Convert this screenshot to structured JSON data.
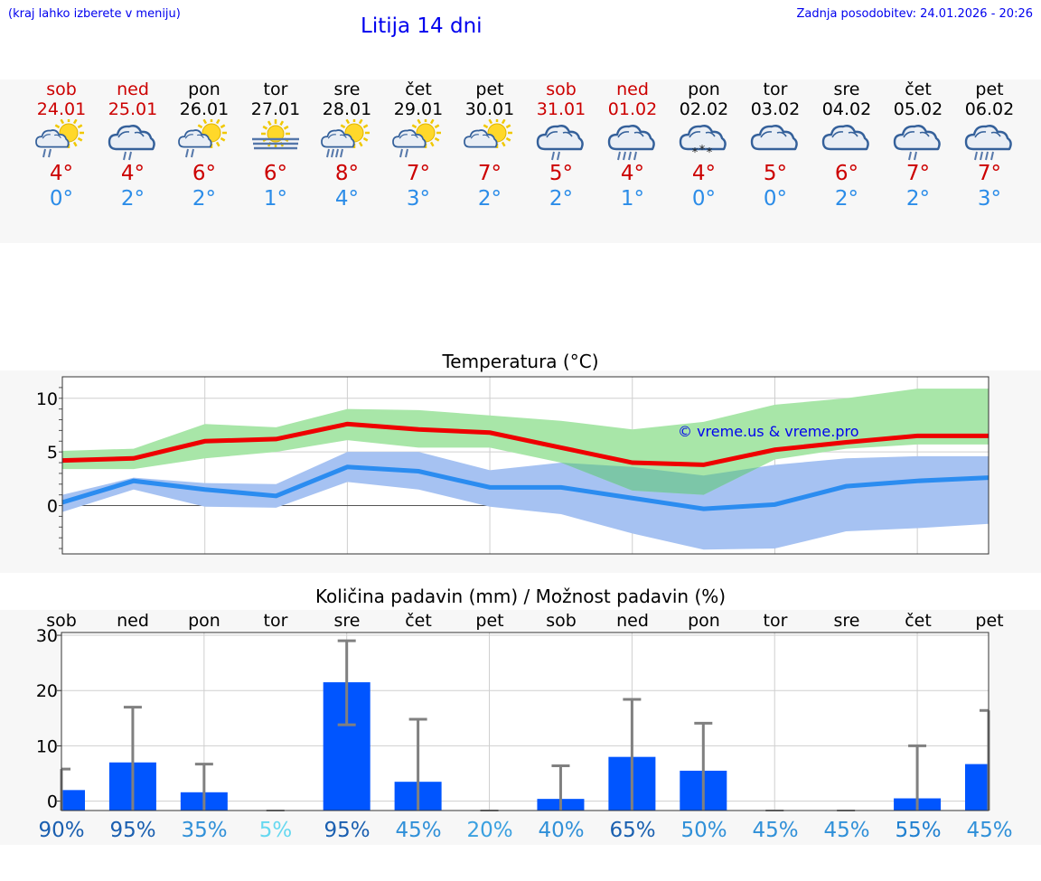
{
  "header": {
    "hint": "(kraj lahko izberete v meniju)",
    "title": "Litija 14 dni",
    "updated": "Zadnja posodobitev: 24.01.2026 - 20:26"
  },
  "days": [
    {
      "name": "sob",
      "date": "24.01",
      "weekend": true,
      "icon": "sun-cloud-rain-icon",
      "hi": "4°",
      "lo": "0°"
    },
    {
      "name": "ned",
      "date": "25.01",
      "weekend": true,
      "icon": "cloud-rain-icon",
      "hi": "4°",
      "lo": "2°"
    },
    {
      "name": "pon",
      "date": "26.01",
      "weekend": false,
      "icon": "sun-cloud-rain-icon",
      "hi": "6°",
      "lo": "2°"
    },
    {
      "name": "tor",
      "date": "27.01",
      "weekend": false,
      "icon": "sun-fog-icon",
      "hi": "6°",
      "lo": "1°"
    },
    {
      "name": "sre",
      "date": "28.01",
      "weekend": false,
      "icon": "sun-cloud-heavy-rain-icon",
      "hi": "8°",
      "lo": "4°"
    },
    {
      "name": "čet",
      "date": "29.01",
      "weekend": false,
      "icon": "sun-cloud-rain-icon",
      "hi": "7°",
      "lo": "3°"
    },
    {
      "name": "pet",
      "date": "30.01",
      "weekend": false,
      "icon": "sun-cloud-icon",
      "hi": "7°",
      "lo": "2°"
    },
    {
      "name": "sob",
      "date": "31.01",
      "weekend": true,
      "icon": "cloud-rain-icon",
      "hi": "5°",
      "lo": "2°"
    },
    {
      "name": "ned",
      "date": "01.02",
      "weekend": true,
      "icon": "cloud-heavy-rain-icon",
      "hi": "4°",
      "lo": "1°"
    },
    {
      "name": "pon",
      "date": "02.02",
      "weekend": false,
      "icon": "cloud-snow-icon",
      "hi": "4°",
      "lo": "0°"
    },
    {
      "name": "tor",
      "date": "03.02",
      "weekend": false,
      "icon": "cloud-icon",
      "hi": "5°",
      "lo": "0°"
    },
    {
      "name": "sre",
      "date": "04.02",
      "weekend": false,
      "icon": "cloud-icon",
      "hi": "6°",
      "lo": "2°"
    },
    {
      "name": "čet",
      "date": "05.02",
      "weekend": false,
      "icon": "cloud-rain-icon",
      "hi": "7°",
      "lo": "2°"
    },
    {
      "name": "pet",
      "date": "06.02",
      "weekend": false,
      "icon": "cloud-heavy-rain-icon",
      "hi": "7°",
      "lo": "3°"
    }
  ],
  "colors": {
    "max_line": "#ee0000",
    "max_band": "#a8e6a8",
    "min_line": "#2b8cf0",
    "min_band": "#a6c2f2",
    "overlap_band": "#7cc6a8",
    "bar": "#0055ff",
    "error": "#808080",
    "watermark": "#0000ee"
  },
  "chart_data": [
    {
      "type": "line",
      "title": "Temperatura (°C)",
      "watermark": "© vreme.us & vreme.pro",
      "x": [
        0,
        1,
        2,
        3,
        4,
        5,
        6,
        7,
        8,
        9,
        10,
        11,
        12,
        13
      ],
      "ylim": [
        -4.5,
        12
      ],
      "yticks": [
        0,
        5,
        10
      ],
      "series": [
        {
          "name": "max",
          "values": [
            4.2,
            4.4,
            6.0,
            6.2,
            7.6,
            7.1,
            6.8,
            5.4,
            4.0,
            3.8,
            5.2,
            5.9,
            6.5,
            6.5
          ],
          "band_low": [
            3.4,
            3.4,
            4.4,
            5.0,
            6.1,
            5.4,
            5.4,
            4.0,
            1.4,
            1.0,
            4.3,
            5.3,
            5.7,
            5.7
          ],
          "band_high": [
            5.1,
            5.3,
            7.6,
            7.3,
            9.0,
            8.9,
            8.4,
            7.9,
            7.1,
            7.8,
            9.4,
            10.0,
            10.9,
            10.9
          ]
        },
        {
          "name": "min",
          "values": [
            0.3,
            2.3,
            1.5,
            0.9,
            3.6,
            3.2,
            1.7,
            1.7,
            0.7,
            -0.3,
            0.1,
            1.8,
            2.3,
            2.6
          ],
          "band_low": [
            -0.6,
            1.5,
            -0.1,
            -0.2,
            2.2,
            1.5,
            -0.1,
            -0.8,
            -2.6,
            -4.1,
            -4.0,
            -2.4,
            -2.1,
            -1.7
          ],
          "band_high": [
            1.0,
            2.6,
            2.1,
            2.0,
            5.0,
            5.0,
            3.3,
            4.0,
            3.6,
            2.8,
            3.8,
            4.4,
            4.6,
            4.6
          ]
        }
      ]
    },
    {
      "type": "bar",
      "title": "Količina padavin (mm) / Možnost padavin (%)",
      "categories": [
        "sob",
        "ned",
        "pon",
        "tor",
        "sre",
        "čet",
        "pet",
        "sob",
        "ned",
        "pon",
        "tor",
        "sre",
        "čet",
        "pet"
      ],
      "values": [
        2,
        7,
        1.6,
        0,
        21.5,
        3.5,
        0,
        0.4,
        8,
        5.5,
        0,
        0,
        0.5,
        6.7
      ],
      "error_high": [
        5.8,
        17,
        6.7,
        0,
        29,
        14.8,
        0,
        6.4,
        18.4,
        14.1,
        0,
        0,
        10,
        16.4
      ],
      "error_low": [
        0,
        0,
        0,
        0,
        13.8,
        0,
        0,
        0,
        0,
        0,
        0,
        0,
        0,
        0
      ],
      "probabilities": [
        "90%",
        "95%",
        "35%",
        "5%",
        "95%",
        "45%",
        "20%",
        "40%",
        "65%",
        "50%",
        "45%",
        "45%",
        "55%",
        "45%"
      ],
      "probability_colors": [
        "#1a5fb0",
        "#1a5fb0",
        "#3090d8",
        "#66d8f0",
        "#1a5fb0",
        "#3090d8",
        "#3aa0e0",
        "#3090d8",
        "#1a60b0",
        "#3090d8",
        "#3090d8",
        "#3090d8",
        "#2080d0",
        "#3090d8"
      ],
      "ylim": [
        -1.7,
        30.5
      ],
      "yticks": [
        0,
        10,
        20,
        30
      ]
    }
  ]
}
